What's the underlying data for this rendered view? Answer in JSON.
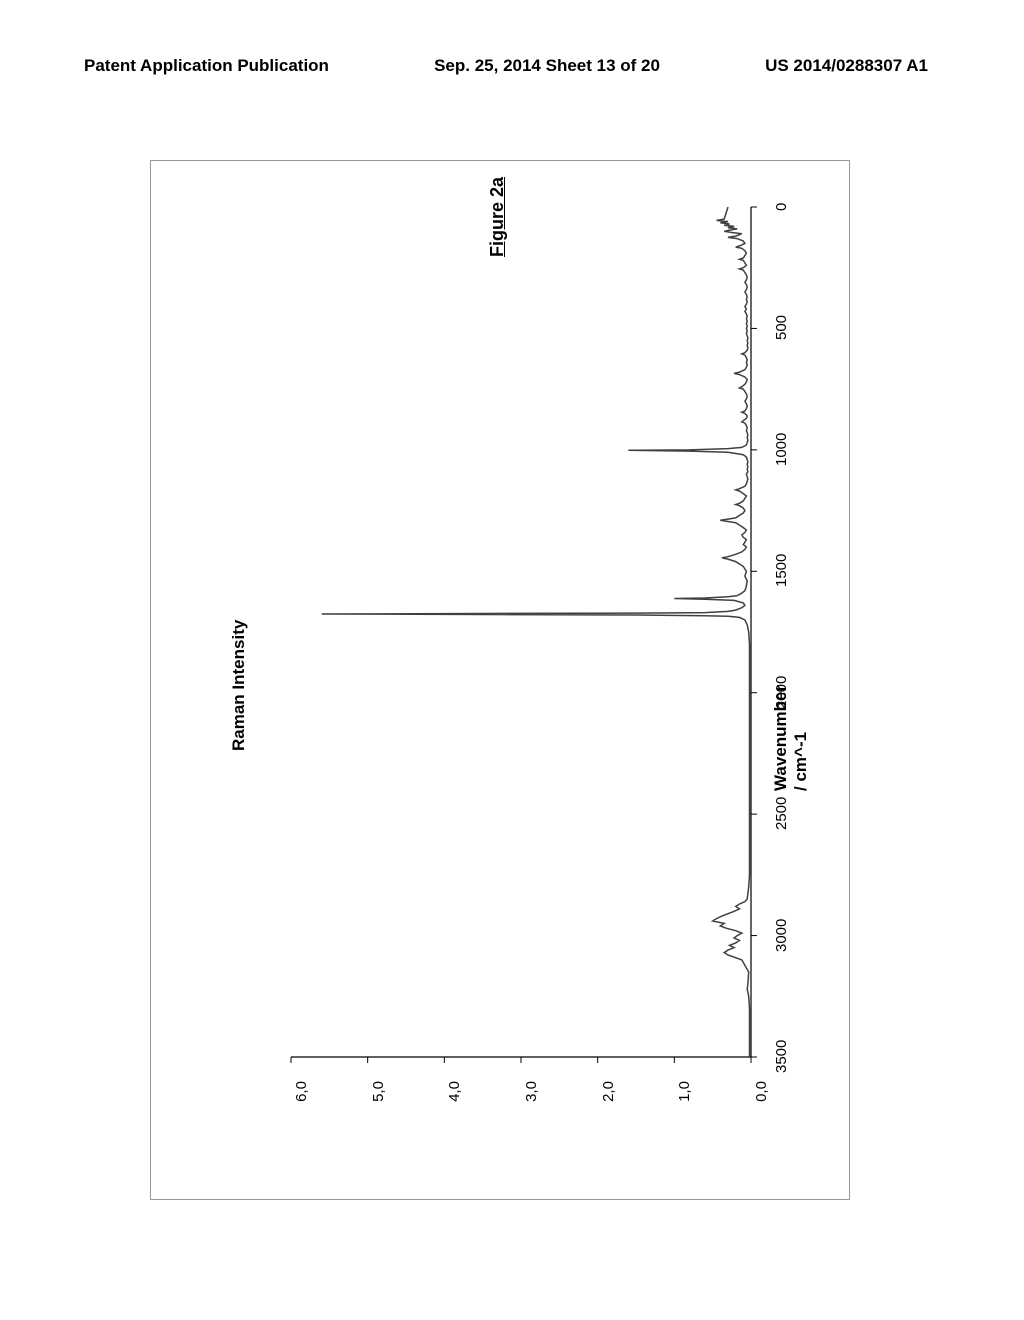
{
  "header": {
    "left": "Patent Application Publication",
    "center": "Sep. 25, 2014  Sheet 13 of 20",
    "right": "US 2014/0288307 A1"
  },
  "figure": {
    "title": "Figure 2a",
    "xlabel": "Raman Intensity",
    "ylabel": "Wavenumber / cm^-1",
    "xlim": [
      0,
      6
    ],
    "ylim": [
      0,
      3500
    ],
    "xticks": [
      "0,0",
      "1,0",
      "2,0",
      "3,0",
      "4,0",
      "5,0",
      "6,0"
    ],
    "xtick_values": [
      0,
      1,
      2,
      3,
      4,
      5,
      6
    ],
    "yticks": [
      "0",
      "500",
      "1000",
      "1500",
      "2000",
      "2500",
      "3000",
      "3500"
    ],
    "ytick_values": [
      0,
      500,
      1000,
      1500,
      2000,
      2500,
      3000,
      3500
    ],
    "line_color": "#404040",
    "line_width": 1.5,
    "axis_color": "#000000",
    "background_color": "#ffffff",
    "spectrum": [
      [
        3500,
        0.02
      ],
      [
        3450,
        0.02
      ],
      [
        3400,
        0.02
      ],
      [
        3350,
        0.02
      ],
      [
        3300,
        0.02
      ],
      [
        3250,
        0.03
      ],
      [
        3220,
        0.05
      ],
      [
        3200,
        0.04
      ],
      [
        3150,
        0.03
      ],
      [
        3100,
        0.12
      ],
      [
        3080,
        0.3
      ],
      [
        3070,
        0.35
      ],
      [
        3060,
        0.3
      ],
      [
        3050,
        0.22
      ],
      [
        3040,
        0.28
      ],
      [
        3030,
        0.2
      ],
      [
        3020,
        0.15
      ],
      [
        3010,
        0.22
      ],
      [
        3000,
        0.18
      ],
      [
        2990,
        0.12
      ],
      [
        2980,
        0.2
      ],
      [
        2970,
        0.32
      ],
      [
        2960,
        0.4
      ],
      [
        2950,
        0.35
      ],
      [
        2940,
        0.5
      ],
      [
        2930,
        0.45
      ],
      [
        2920,
        0.38
      ],
      [
        2910,
        0.3
      ],
      [
        2900,
        0.22
      ],
      [
        2890,
        0.15
      ],
      [
        2880,
        0.2
      ],
      [
        2870,
        0.15
      ],
      [
        2860,
        0.08
      ],
      [
        2850,
        0.05
      ],
      [
        2800,
        0.03
      ],
      [
        2750,
        0.02
      ],
      [
        2700,
        0.02
      ],
      [
        2600,
        0.02
      ],
      [
        2500,
        0.02
      ],
      [
        2400,
        0.02
      ],
      [
        2300,
        0.02
      ],
      [
        2200,
        0.02
      ],
      [
        2100,
        0.02
      ],
      [
        2000,
        0.02
      ],
      [
        1900,
        0.02
      ],
      [
        1800,
        0.02
      ],
      [
        1750,
        0.03
      ],
      [
        1720,
        0.05
      ],
      [
        1700,
        0.08
      ],
      [
        1690,
        0.15
      ],
      [
        1685,
        0.3
      ],
      [
        1683,
        0.6
      ],
      [
        1680,
        1.5
      ],
      [
        1678,
        3.5
      ],
      [
        1676,
        5.6
      ],
      [
        1674,
        3.5
      ],
      [
        1672,
        1.5
      ],
      [
        1670,
        0.6
      ],
      [
        1665,
        0.3
      ],
      [
        1660,
        0.2
      ],
      [
        1650,
        0.12
      ],
      [
        1640,
        0.08
      ],
      [
        1630,
        0.1
      ],
      [
        1620,
        0.22
      ],
      [
        1615,
        0.6
      ],
      [
        1612,
        1.0
      ],
      [
        1610,
        0.6
      ],
      [
        1605,
        0.3
      ],
      [
        1600,
        0.18
      ],
      [
        1590,
        0.12
      ],
      [
        1580,
        0.08
      ],
      [
        1560,
        0.06
      ],
      [
        1540,
        0.05
      ],
      [
        1520,
        0.08
      ],
      [
        1500,
        0.06
      ],
      [
        1480,
        0.1
      ],
      [
        1470,
        0.15
      ],
      [
        1460,
        0.2
      ],
      [
        1450,
        0.3
      ],
      [
        1445,
        0.38
      ],
      [
        1440,
        0.3
      ],
      [
        1430,
        0.2
      ],
      [
        1420,
        0.12
      ],
      [
        1410,
        0.08
      ],
      [
        1400,
        0.06
      ],
      [
        1390,
        0.1
      ],
      [
        1380,
        0.08
      ],
      [
        1370,
        0.06
      ],
      [
        1360,
        0.1
      ],
      [
        1350,
        0.12
      ],
      [
        1340,
        0.08
      ],
      [
        1330,
        0.06
      ],
      [
        1320,
        0.1
      ],
      [
        1310,
        0.15
      ],
      [
        1300,
        0.2
      ],
      [
        1295,
        0.3
      ],
      [
        1290,
        0.4
      ],
      [
        1285,
        0.3
      ],
      [
        1280,
        0.2
      ],
      [
        1270,
        0.15
      ],
      [
        1260,
        0.1
      ],
      [
        1250,
        0.08
      ],
      [
        1240,
        0.1
      ],
      [
        1230,
        0.15
      ],
      [
        1225,
        0.2
      ],
      [
        1220,
        0.15
      ],
      [
        1210,
        0.1
      ],
      [
        1200,
        0.08
      ],
      [
        1190,
        0.06
      ],
      [
        1180,
        0.1
      ],
      [
        1170,
        0.15
      ],
      [
        1165,
        0.2
      ],
      [
        1160,
        0.15
      ],
      [
        1150,
        0.08
      ],
      [
        1140,
        0.06
      ],
      [
        1130,
        0.05
      ],
      [
        1120,
        0.04
      ],
      [
        1110,
        0.05
      ],
      [
        1100,
        0.06
      ],
      [
        1090,
        0.04
      ],
      [
        1080,
        0.05
      ],
      [
        1070,
        0.04
      ],
      [
        1060,
        0.05
      ],
      [
        1050,
        0.04
      ],
      [
        1040,
        0.05
      ],
      [
        1030,
        0.06
      ],
      [
        1020,
        0.1
      ],
      [
        1010,
        0.3
      ],
      [
        1005,
        0.8
      ],
      [
        1002,
        1.6
      ],
      [
        1000,
        0.8
      ],
      [
        995,
        0.3
      ],
      [
        990,
        0.12
      ],
      [
        980,
        0.06
      ],
      [
        970,
        0.05
      ],
      [
        960,
        0.04
      ],
      [
        950,
        0.05
      ],
      [
        940,
        0.04
      ],
      [
        930,
        0.05
      ],
      [
        920,
        0.06
      ],
      [
        910,
        0.05
      ],
      [
        900,
        0.06
      ],
      [
        890,
        0.08
      ],
      [
        885,
        0.12
      ],
      [
        880,
        0.1
      ],
      [
        870,
        0.06
      ],
      [
        860,
        0.05
      ],
      [
        850,
        0.08
      ],
      [
        845,
        0.12
      ],
      [
        840,
        0.08
      ],
      [
        830,
        0.06
      ],
      [
        820,
        0.05
      ],
      [
        810,
        0.06
      ],
      [
        800,
        0.08
      ],
      [
        790,
        0.06
      ],
      [
        780,
        0.05
      ],
      [
        770,
        0.06
      ],
      [
        760,
        0.08
      ],
      [
        750,
        0.1
      ],
      [
        745,
        0.15
      ],
      [
        740,
        0.12
      ],
      [
        730,
        0.08
      ],
      [
        720,
        0.06
      ],
      [
        710,
        0.05
      ],
      [
        700,
        0.08
      ],
      [
        690,
        0.15
      ],
      [
        685,
        0.22
      ],
      [
        680,
        0.15
      ],
      [
        670,
        0.08
      ],
      [
        660,
        0.06
      ],
      [
        650,
        0.05
      ],
      [
        640,
        0.06
      ],
      [
        630,
        0.05
      ],
      [
        620,
        0.06
      ],
      [
        610,
        0.08
      ],
      [
        605,
        0.12
      ],
      [
        600,
        0.08
      ],
      [
        590,
        0.05
      ],
      [
        580,
        0.04
      ],
      [
        570,
        0.05
      ],
      [
        560,
        0.04
      ],
      [
        550,
        0.05
      ],
      [
        540,
        0.04
      ],
      [
        530,
        0.05
      ],
      [
        520,
        0.06
      ],
      [
        510,
        0.05
      ],
      [
        500,
        0.06
      ],
      [
        490,
        0.05
      ],
      [
        480,
        0.06
      ],
      [
        470,
        0.05
      ],
      [
        460,
        0.06
      ],
      [
        450,
        0.05
      ],
      [
        440,
        0.06
      ],
      [
        430,
        0.08
      ],
      [
        420,
        0.06
      ],
      [
        410,
        0.08
      ],
      [
        400,
        0.06
      ],
      [
        390,
        0.05
      ],
      [
        380,
        0.06
      ],
      [
        370,
        0.05
      ],
      [
        360,
        0.06
      ],
      [
        350,
        0.08
      ],
      [
        340,
        0.06
      ],
      [
        330,
        0.05
      ],
      [
        320,
        0.06
      ],
      [
        310,
        0.08
      ],
      [
        300,
        0.06
      ],
      [
        290,
        0.05
      ],
      [
        280,
        0.06
      ],
      [
        270,
        0.08
      ],
      [
        260,
        0.1
      ],
      [
        255,
        0.15
      ],
      [
        250,
        0.1
      ],
      [
        240,
        0.06
      ],
      [
        230,
        0.08
      ],
      [
        220,
        0.1
      ],
      [
        215,
        0.15
      ],
      [
        210,
        0.1
      ],
      [
        200,
        0.08
      ],
      [
        190,
        0.06
      ],
      [
        180,
        0.08
      ],
      [
        170,
        0.12
      ],
      [
        165,
        0.2
      ],
      [
        160,
        0.15
      ],
      [
        150,
        0.08
      ],
      [
        140,
        0.1
      ],
      [
        130,
        0.18
      ],
      [
        125,
        0.3
      ],
      [
        120,
        0.2
      ],
      [
        110,
        0.12
      ],
      [
        105,
        0.25
      ],
      [
        100,
        0.35
      ],
      [
        95,
        0.28
      ],
      [
        90,
        0.18
      ],
      [
        85,
        0.3
      ],
      [
        80,
        0.22
      ],
      [
        75,
        0.35
      ],
      [
        70,
        0.28
      ],
      [
        65,
        0.4
      ],
      [
        60,
        0.3
      ],
      [
        55,
        0.45
      ],
      [
        50,
        0.35
      ],
      [
        0,
        0.3
      ]
    ]
  }
}
